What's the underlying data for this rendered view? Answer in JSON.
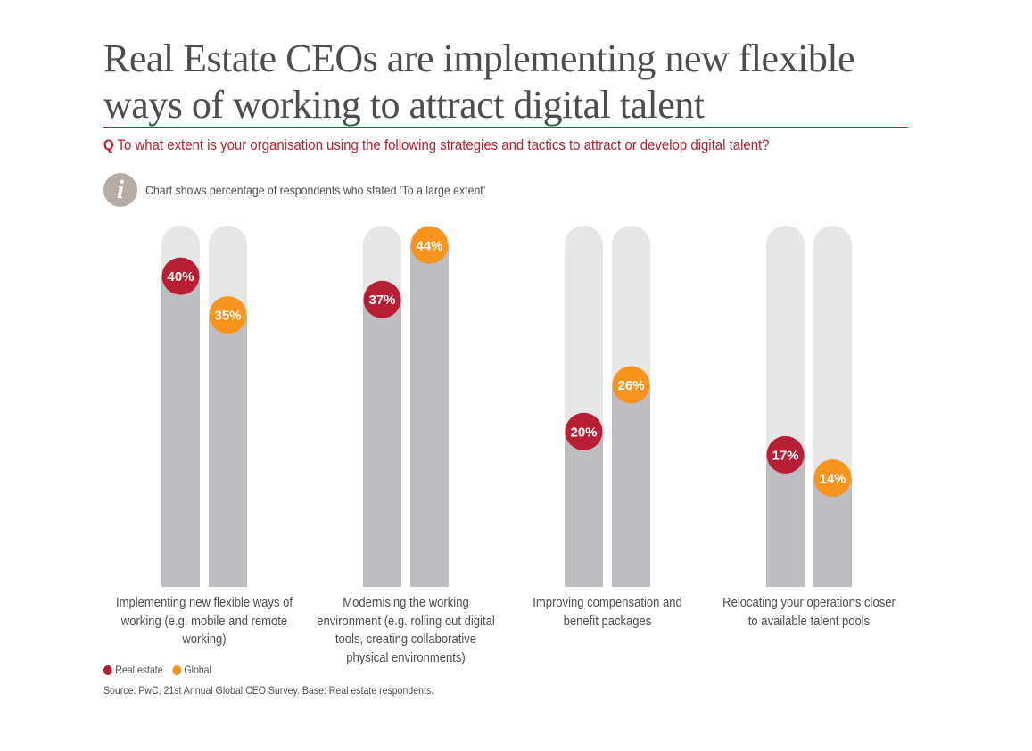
{
  "header": {
    "title": "Real Estate CEOs are implementing new flexible ways of working to attract digital talent",
    "question_prefix": "Q",
    "question": "To what extent is your organisation using the following strategies and tactics to attract or develop digital talent?",
    "info_icon": "info-icon",
    "info_text": "Chart shows percentage of respondents who stated ‘To a large extent’"
  },
  "colors": {
    "real_estate": "#b81f35",
    "global": "#f7941d",
    "track": "#e6e6e7",
    "fill": "#bebec2"
  },
  "chart_data": {
    "type": "bar",
    "title": "",
    "xlabel": "",
    "ylabel": "",
    "unit": "%",
    "ylim": [
      0,
      46.5
    ],
    "grid": false,
    "legend_position": "bottom-left",
    "categories": [
      "Implementing new flexible ways of working (e.g. mobile and remote working)",
      "Modernising the working environment (e.g. rolling out digital tools, creating collaborative physical environments)",
      "Improving compensation and benefit packages",
      "Relocating your operations closer to available talent pools"
    ],
    "series": [
      {
        "name": "Real estate",
        "values": [
          40,
          37,
          20,
          17
        ]
      },
      {
        "name": "Global",
        "values": [
          35,
          44,
          26,
          14
        ]
      }
    ]
  },
  "legend": {
    "items": [
      {
        "label": "Real estate"
      },
      {
        "label": "Global"
      }
    ]
  },
  "footer": {
    "source": "Source: PwC, 21st Annual Global CEO Survey. Base: Real estate respondents."
  }
}
